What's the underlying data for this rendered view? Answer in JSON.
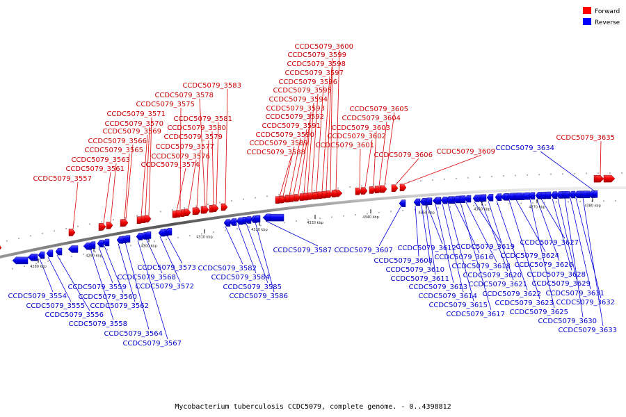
{
  "caption": "Mycobacterium tuberculosis CCDC5079, complete genome. - 0..4398812",
  "legend": [
    {
      "label": "Forward",
      "color": "#ff0000"
    },
    {
      "label": "Reverse",
      "color": "#0000ff"
    }
  ],
  "axis_ticks": [
    "4280 kbp",
    "4290 kbp",
    "4300 kbp",
    "4310 kbp",
    "4320 kbp",
    "4330 kbp",
    "4340 kbp",
    "4350 kbp",
    "4360 kbp",
    "4370 kbp",
    "4380 kbp"
  ],
  "forward_genes": [
    "CCDC5079_3557",
    "CCDC5079_3561",
    "CCDC5079_3563",
    "CCDC5079_3565",
    "CCDC5079_3566",
    "CCDC5079_3569",
    "CCDC5079_3570",
    "CCDC5079_3571",
    "CCDC5079_3574",
    "CCDC5079_3575",
    "CCDC5079_3576",
    "CCDC5079_3577",
    "CCDC5079_3578",
    "CCDC5079_3579",
    "CCDC5079_3580",
    "CCDC5079_3581",
    "CCDC5079_3583",
    "CCDC5079_3588",
    "CCDC5079_3589",
    "CCDC5079_3590",
    "CCDC5079_3591",
    "CCDC5079_3592",
    "CCDC5079_3593",
    "CCDC5079_3594",
    "CCDC5079_3595",
    "CCDC5079_3596",
    "CCDC5079_3597",
    "CCDC5079_3598",
    "CCDC5079_3599",
    "CCDC5079_3600",
    "CCDC5079_3601",
    "CCDC5079_3602",
    "CCDC5079_3603",
    "CCDC5079_3604",
    "CCDC5079_3605",
    "CCDC5079_3606",
    "CCDC5079_3609",
    "CCDC5079_3635"
  ],
  "reverse_genes": [
    "CCDC5079_3554",
    "CCDC5079_3555",
    "CCDC5079_3556",
    "CCDC5079_3558",
    "CCDC5079_3559",
    "CCDC5079_3560",
    "CCDC5079_3562",
    "CCDC5079_3564",
    "CCDC5079_3567",
    "CCDC5079_3568",
    "CCDC5079_3572",
    "CCDC5079_3573",
    "CCDC5079_3582",
    "CCDC5079_3584",
    "CCDC5079_3585",
    "CCDC5079_3586",
    "CCDC5079_3587",
    "CCDC5079_3607",
    "CCDC5079_3608",
    "CCDC5079_3610",
    "CCDC5079_3611",
    "CCDC5079_3612",
    "CCDC5079_3613",
    "CCDC5079_3614",
    "CCDC5079_3615",
    "CCDC5079_3616",
    "CCDC5079_3617",
    "CCDC5079_3618",
    "CCDC5079_3619",
    "CCDC5079_3620",
    "CCDC5079_3621",
    "CCDC5079_3622",
    "CCDC5079_3623",
    "CCDC5079_3624",
    "CCDC5079_3625",
    "CCDC5079_3626",
    "CCDC5079_3627",
    "CCDC5079_3628",
    "CCDC5079_3629",
    "CCDC5079_3630",
    "CCDC5079_3631",
    "CCDC5079_3632",
    "CCDC5079_3633",
    "CCDC5079_3634"
  ]
}
